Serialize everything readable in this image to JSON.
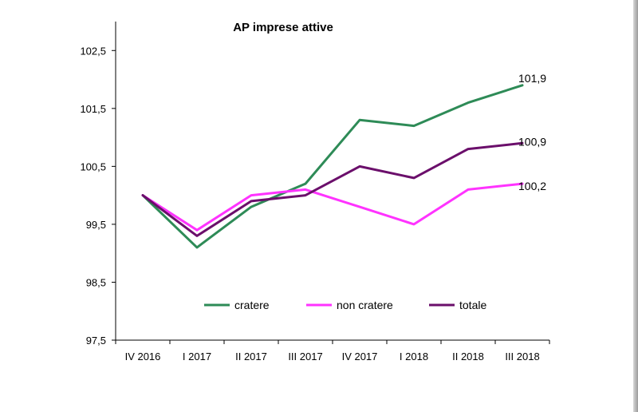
{
  "chart_data": {
    "type": "line",
    "title": "AP imprese attive",
    "categories": [
      "IV 2016",
      "I 2017",
      "II 2017",
      "III 2017",
      "IV 2017",
      "I 2018",
      "II 2018",
      "III 2018"
    ],
    "ylim": [
      97.5,
      103.0
    ],
    "yticks": [
      97.5,
      98.5,
      99.5,
      100.5,
      101.5,
      102.5
    ],
    "ytick_labels": [
      "97,5",
      "98,5",
      "99,5",
      "100,5",
      "101,5",
      "102,5"
    ],
    "grid": false,
    "legend_position": "bottom-inside",
    "series": [
      {
        "name": "cratere",
        "color": "#2e8b57",
        "values": [
          100.0,
          99.1,
          99.8,
          100.2,
          101.3,
          101.2,
          101.6,
          101.9
        ],
        "end_label": "101,9"
      },
      {
        "name": "non cratere",
        "color": "#ff33ff",
        "values": [
          100.0,
          99.4,
          100.0,
          100.1,
          99.8,
          99.5,
          100.1,
          100.2
        ],
        "end_label": "100,2"
      },
      {
        "name": "totale",
        "color": "#6b0f6b",
        "values": [
          100.0,
          99.3,
          99.9,
          100.0,
          100.5,
          100.3,
          100.8,
          100.9
        ],
        "end_label": "100,9"
      }
    ]
  }
}
